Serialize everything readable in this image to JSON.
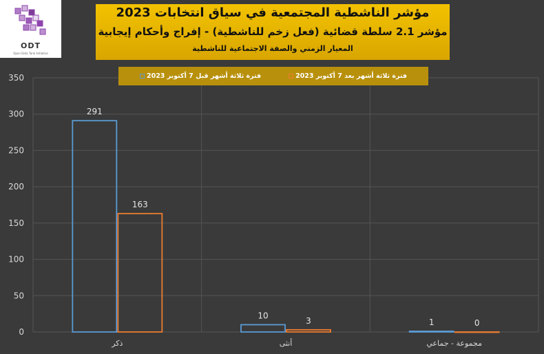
{
  "logo": {
    "text": "ODT",
    "subtitle": "Open Data Tank Initiative"
  },
  "header": {
    "title": "مؤشر الناشطية المجتمعية في سياق انتخابات 2023",
    "subtitle": "مؤشر 2.1 سلطة قضائية (فعل زخم للناشطية) - إفراج وأحكام إيجابية",
    "caption": "المعيار الزمني والصفة الاجتماعية للناشطية"
  },
  "colors": {
    "before": "#5b9bd5",
    "after": "#ed7d31",
    "background": "#3a3a3a",
    "grid": "#555555"
  },
  "chart_data": {
    "type": "bar",
    "title": "مؤشر الناشطية المجتمعية في سياق انتخابات 2023",
    "categories": [
      "ذكر",
      "أنثى",
      "مجموعة - جماعي"
    ],
    "series": [
      {
        "name": "فترة ثلاثة أشهر قبل 7 أكتوبر 2023",
        "values": [
          291,
          10,
          1
        ]
      },
      {
        "name": "فترة ثلاثة أشهر بعد 7 أكتوبر 2023",
        "values": [
          163,
          3,
          0
        ]
      }
    ],
    "ylim": [
      0,
      350
    ],
    "yticks": [
      "0",
      "50",
      "100",
      "150",
      "200",
      "250",
      "300",
      "350"
    ],
    "grid": true,
    "legend_position": "top",
    "xlabel": "",
    "ylabel": ""
  }
}
